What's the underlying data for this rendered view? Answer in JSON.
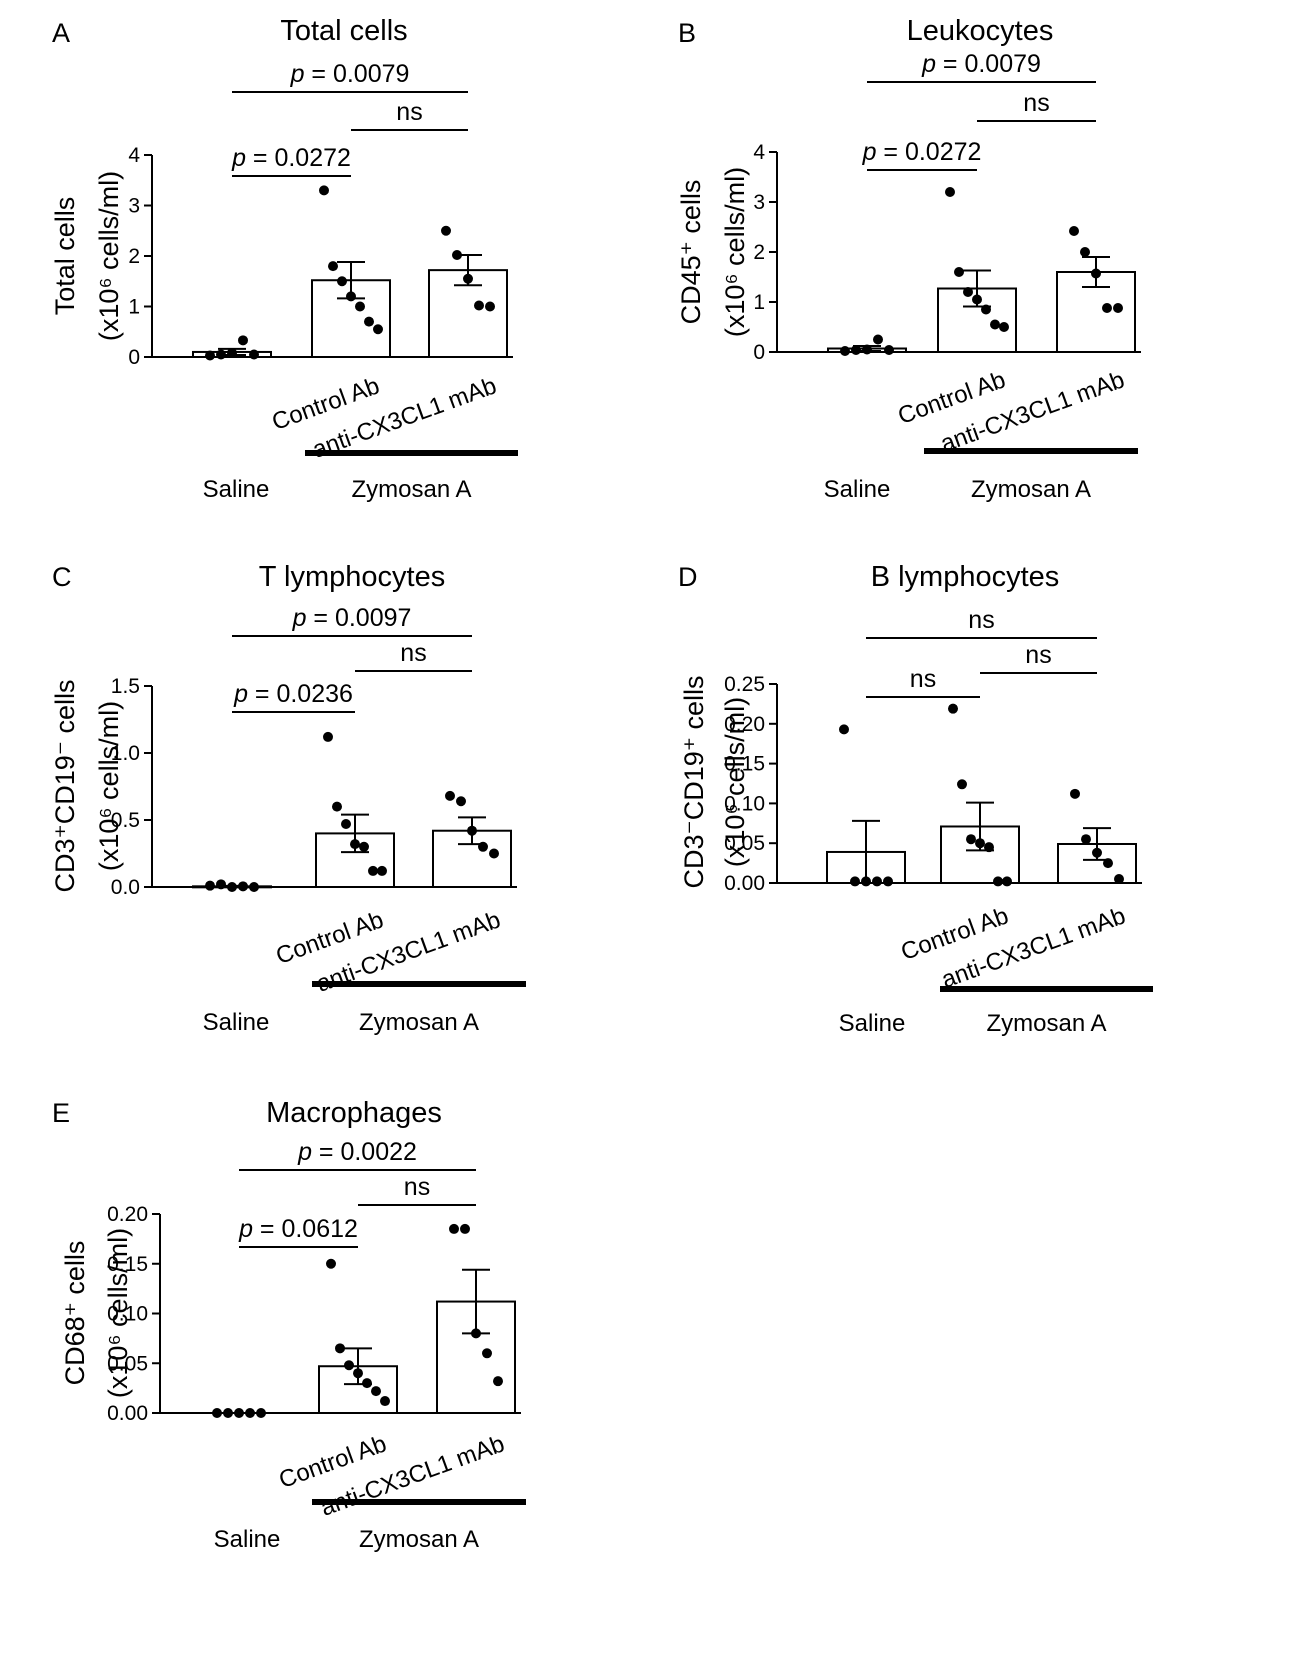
{
  "figure": {
    "group_left": "Saline",
    "group_right": "Zymosan A",
    "p_prefix": "p"
  },
  "chart_data": [
    {
      "panel": "A",
      "type": "bar",
      "title": "Total cells",
      "ylabel_line1": "Total cells",
      "ylabel_line2": "(x10⁶ cells/ml)",
      "ylim": [
        0,
        4
      ],
      "yticks": [
        "0",
        "1",
        "2",
        "3",
        "4"
      ],
      "ytick_values": [
        0,
        1,
        2,
        3,
        4
      ],
      "categories": [
        "",
        "Control Ab",
        "anti-CX3CL1 mAb"
      ],
      "means": [
        0.1,
        1.52,
        1.72
      ],
      "sem": [
        0.06,
        0.36,
        0.3
      ],
      "points": [
        [
          0.03,
          0.05,
          0.08,
          0.33,
          0.05
        ],
        [
          3.3,
          1.8,
          1.5,
          1.2,
          1.0,
          0.7,
          0.55
        ],
        [
          2.5,
          2.02,
          1.55,
          1.02,
          1.0
        ]
      ],
      "comparisons": [
        {
          "pair": [
            0,
            1
          ],
          "label": " = 0.0272",
          "p": true
        },
        {
          "pair": [
            1,
            2
          ],
          "label": "ns",
          "p": false
        },
        {
          "pair": [
            0,
            2
          ],
          "label": " = 0.0079",
          "p": true
        }
      ]
    },
    {
      "panel": "B",
      "type": "bar",
      "title": "Leukocytes",
      "ylabel_line1": "CD45⁺ cells",
      "ylabel_line2": "(x10⁶ cells/ml)",
      "ylim": [
        0,
        4
      ],
      "yticks": [
        "0",
        "1",
        "2",
        "3",
        "4"
      ],
      "ytick_values": [
        0,
        1,
        2,
        3,
        4
      ],
      "categories": [
        "",
        "Control Ab",
        "anti-CX3CL1 mAb"
      ],
      "means": [
        0.07,
        1.27,
        1.6
      ],
      "sem": [
        0.05,
        0.36,
        0.3
      ],
      "points": [
        [
          0.02,
          0.04,
          0.05,
          0.25,
          0.04
        ],
        [
          3.2,
          1.6,
          1.2,
          1.05,
          0.85,
          0.55,
          0.5
        ],
        [
          2.42,
          2.0,
          1.57,
          0.88,
          0.88
        ]
      ],
      "comparisons": [
        {
          "pair": [
            0,
            1
          ],
          "label": " = 0.0272",
          "p": true
        },
        {
          "pair": [
            1,
            2
          ],
          "label": "ns",
          "p": false
        },
        {
          "pair": [
            0,
            2
          ],
          "label": " = 0.0079",
          "p": true
        }
      ]
    },
    {
      "panel": "C",
      "type": "bar",
      "title": "T lymphocytes",
      "ylabel_line1": "CD3⁺CD19⁻ cells",
      "ylabel_line2": "(x10⁶ cells/ml)",
      "ylim": [
        0,
        1.5
      ],
      "yticks": [
        "0.0",
        "0.5",
        "1.0",
        "1.5"
      ],
      "ytick_values": [
        0,
        0.5,
        1.0,
        1.5
      ],
      "categories": [
        "",
        "Control Ab",
        "anti-CX3CL1 mAb"
      ],
      "means": [
        0.005,
        0.4,
        0.42
      ],
      "sem": [
        0.003,
        0.14,
        0.1
      ],
      "points": [
        [
          0.01,
          0.02,
          0.0,
          0.005,
          0.0
        ],
        [
          1.12,
          0.6,
          0.47,
          0.32,
          0.3,
          0.12,
          0.12
        ],
        [
          0.68,
          0.64,
          0.42,
          0.3,
          0.25
        ]
      ],
      "comparisons": [
        {
          "pair": [
            0,
            1
          ],
          "label": " = 0.0236",
          "p": true
        },
        {
          "pair": [
            1,
            2
          ],
          "label": "ns",
          "p": false
        },
        {
          "pair": [
            0,
            2
          ],
          "label": " = 0.0097",
          "p": true
        }
      ]
    },
    {
      "panel": "D",
      "type": "bar",
      "title": "B lymphocytes",
      "ylabel_line1": "CD3⁻CD19⁺ cells",
      "ylabel_line2": "(x10⁶ cells/ml)",
      "ylim": [
        0,
        0.25
      ],
      "yticks": [
        "0.00",
        "0.05",
        "0.10",
        "0.15",
        "0.20",
        "0.25"
      ],
      "ytick_values": [
        0,
        0.05,
        0.1,
        0.15,
        0.2,
        0.25
      ],
      "categories": [
        "",
        "Control Ab",
        "anti-CX3CL1 mAb"
      ],
      "means": [
        0.039,
        0.071,
        0.049
      ],
      "sem": [
        0.039,
        0.03,
        0.02
      ],
      "points": [
        [
          0.193,
          0.002,
          0.002,
          0.002,
          0.002
        ],
        [
          0.219,
          0.124,
          0.055,
          0.05,
          0.045,
          0.002,
          0.002
        ],
        [
          0.112,
          0.055,
          0.038,
          0.025,
          0.005
        ]
      ],
      "comparisons": [
        {
          "pair": [
            0,
            1
          ],
          "label": "ns",
          "p": false
        },
        {
          "pair": [
            1,
            2
          ],
          "label": "ns",
          "p": false
        },
        {
          "pair": [
            0,
            2
          ],
          "label": "ns",
          "p": false
        }
      ]
    },
    {
      "panel": "E",
      "type": "bar",
      "title": "Macrophages",
      "ylabel_line1": "CD68⁺ cells",
      "ylabel_line2": "(x10⁶ cells/ml)",
      "ylim": [
        0,
        0.2
      ],
      "yticks": [
        "0.00",
        "0.05",
        "0.10",
        "0.15",
        "0.20"
      ],
      "ytick_values": [
        0,
        0.05,
        0.1,
        0.15,
        0.2
      ],
      "categories": [
        "",
        "Control Ab",
        "anti-CX3CL1 mAb"
      ],
      "means": [
        0.0,
        0.047,
        0.112
      ],
      "sem": [
        0.0,
        0.018,
        0.032
      ],
      "points": [
        [
          0.0,
          0.0,
          0.0,
          0.0,
          0.0
        ],
        [
          0.15,
          0.065,
          0.048,
          0.04,
          0.03,
          0.022,
          0.012
        ],
        [
          0.185,
          0.185,
          0.08,
          0.06,
          0.032
        ]
      ],
      "comparisons": [
        {
          "pair": [
            0,
            1
          ],
          "label": " = 0.0612",
          "p": true
        },
        {
          "pair": [
            1,
            2
          ],
          "label": "ns",
          "p": false
        },
        {
          "pair": [
            0,
            2
          ],
          "label": " = 0.0022",
          "p": true
        }
      ]
    }
  ]
}
